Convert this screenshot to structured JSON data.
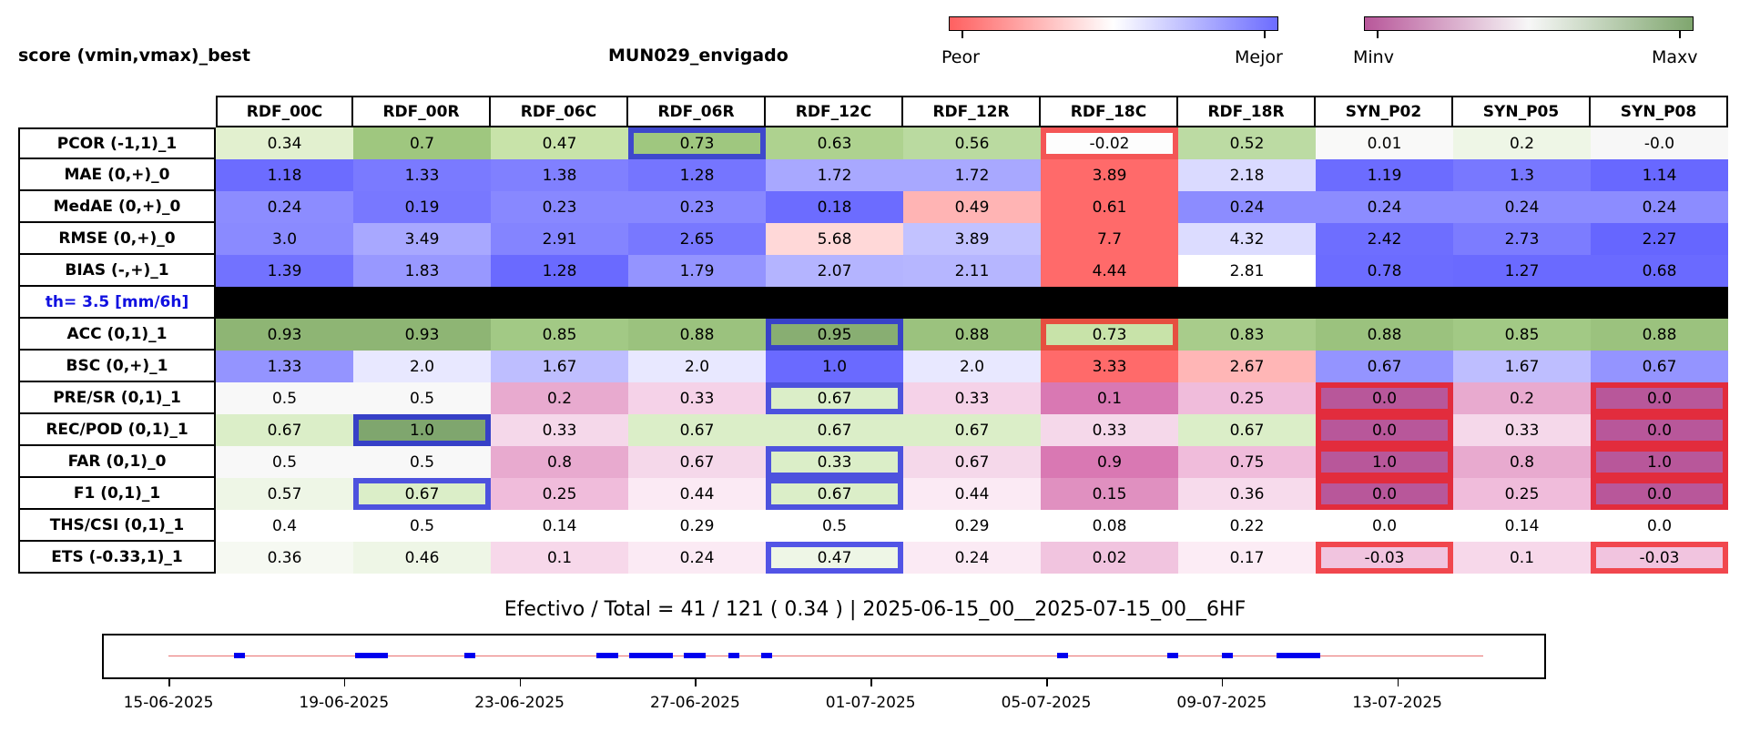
{
  "header": {
    "left_title": "score (vmin,vmax)_best",
    "center_title": "MUN029_envigado"
  },
  "colorbars": {
    "score": {
      "low_label": "Peor",
      "high_label": "Mejor",
      "low_color": "#ff6060",
      "mid_color": "#ffffff",
      "high_color": "#6c6cff"
    },
    "value": {
      "low_label": "Minv",
      "high_label": "Maxv",
      "low_color": "#b8579a",
      "mid_color": "#f7f7f7",
      "high_color": "#7fa66e"
    }
  },
  "chart_data": {
    "type": "table",
    "columns": [
      "RDF_00C",
      "RDF_00R",
      "RDF_06C",
      "RDF_06R",
      "RDF_12C",
      "RDF_12R",
      "RDF_18C",
      "RDF_18R",
      "SYN_P02",
      "SYN_P05",
      "SYN_P08"
    ],
    "rows": [
      {
        "label": "PCOR (-1,1)_1",
        "values": [
          "0.34",
          "0.7",
          "0.47",
          "0.73",
          "0.63",
          "0.56",
          "-0.02",
          "0.52",
          "0.01",
          "0.2",
          "-0.0"
        ],
        "colors": [
          "#e2f0cf",
          "#9fc77f",
          "#c8e3a9",
          "#9fc77f",
          "#aed28f",
          "#badaa0",
          "#fdfdfd",
          "#bcdba3",
          "#f9f9f8",
          "#eef6e6",
          "#f7f7f7"
        ],
        "highlights": {
          "3": "blue",
          "6": "red"
        }
      },
      {
        "label": "MAE (0,+)_0",
        "values": [
          "1.18",
          "1.33",
          "1.38",
          "1.28",
          "1.72",
          "1.72",
          "3.89",
          "2.18",
          "1.19",
          "1.3",
          "1.14"
        ],
        "colors": [
          "#6c6cff",
          "#7a7aff",
          "#8080ff",
          "#7575ff",
          "#a8a8ff",
          "#a8a8ff",
          "#ff6a6a",
          "#dadaff",
          "#6c6cff",
          "#7878ff",
          "#6868ff"
        ],
        "highlights": {}
      },
      {
        "label": "MedAE (0,+)_0",
        "values": [
          "0.24",
          "0.19",
          "0.23",
          "0.23",
          "0.18",
          "0.49",
          "0.61",
          "0.24",
          "0.24",
          "0.24",
          "0.24"
        ],
        "colors": [
          "#8c8cff",
          "#7878ff",
          "#8888ff",
          "#8888ff",
          "#6c6cff",
          "#ffb4b4",
          "#ff6a6a",
          "#8c8cff",
          "#8c8cff",
          "#8c8cff",
          "#8c8cff"
        ],
        "highlights": {}
      },
      {
        "label": "RMSE (0,+)_0",
        "values": [
          "3.0",
          "3.49",
          "2.91",
          "2.65",
          "5.68",
          "3.89",
          "7.7",
          "4.32",
          "2.42",
          "2.73",
          "2.27"
        ],
        "colors": [
          "#8a8aff",
          "#a8a8ff",
          "#8484ff",
          "#7878ff",
          "#ffd8d8",
          "#c2c2ff",
          "#ff6a6a",
          "#dcdcff",
          "#6e6eff",
          "#7c7cff",
          "#6666ff"
        ],
        "highlights": {}
      },
      {
        "label": "BIAS (-,+)_1",
        "values": [
          "1.39",
          "1.83",
          "1.28",
          "1.79",
          "2.07",
          "2.11",
          "4.44",
          "2.81",
          "0.78",
          "1.27",
          "0.68"
        ],
        "colors": [
          "#7272ff",
          "#9898ff",
          "#6a6aff",
          "#9494ff",
          "#b4b4ff",
          "#b6b6ff",
          "#ff6a6a",
          "#ffffff",
          "#6c6cff",
          "#6a6aff",
          "#6a6aff"
        ],
        "highlights": {}
      },
      {
        "label": "th= 3.5 [mm/6h]",
        "threshold": true
      },
      {
        "label": "ACC (0,1)_1",
        "values": [
          "0.93",
          "0.93",
          "0.85",
          "0.88",
          "0.95",
          "0.88",
          "0.73",
          "0.83",
          "0.88",
          "0.85",
          "0.88"
        ],
        "colors": [
          "#8eb574",
          "#8eb574",
          "#a2c985",
          "#9bc27e",
          "#88ae72",
          "#9bc27e",
          "#c8e3a9",
          "#a8cc8b",
          "#9bc27e",
          "#a2c985",
          "#9bc27e"
        ],
        "highlights": {
          "4": "blue",
          "6": "red"
        }
      },
      {
        "label": "BSC (0,+)_1",
        "values": [
          "1.33",
          "2.0",
          "1.67",
          "2.0",
          "1.0",
          "2.0",
          "3.33",
          "2.67",
          "0.67",
          "1.67",
          "0.67"
        ],
        "colors": [
          "#9494ff",
          "#e8e8ff",
          "#bebeff",
          "#e8e8ff",
          "#6a6aff",
          "#e8e8ff",
          "#ff6a6a",
          "#ffb6b6",
          "#9494ff",
          "#bebeff",
          "#9494ff"
        ],
        "highlights": {}
      },
      {
        "label": "PRE/SR (0,1)_1",
        "values": [
          "0.5",
          "0.5",
          "0.2",
          "0.33",
          "0.67",
          "0.33",
          "0.1",
          "0.25",
          "0.0",
          "0.2",
          "0.0"
        ],
        "colors": [
          "#f8f8f8",
          "#f8f8f8",
          "#e8aacf",
          "#f5d2e8",
          "#dbeec8",
          "#f5d2e8",
          "#d978b3",
          "#f0bcdb",
          "#b8579a",
          "#e8aacf",
          "#b8579a"
        ],
        "highlights": {
          "4": "blue",
          "8": "red",
          "10": "red"
        }
      },
      {
        "label": "REC/POD (0,1)_1",
        "values": [
          "0.67",
          "1.0",
          "0.33",
          "0.67",
          "0.67",
          "0.67",
          "0.33",
          "0.67",
          "0.0",
          "0.33",
          "0.0"
        ],
        "colors": [
          "#dbeec8",
          "#7fa66e",
          "#f5d8ea",
          "#dbeec8",
          "#dbeec8",
          "#dbeec8",
          "#f5d8ea",
          "#dbeec8",
          "#b8579a",
          "#f5d8ea",
          "#b8579a"
        ],
        "highlights": {
          "1": "blue",
          "8": "red",
          "10": "red"
        }
      },
      {
        "label": "FAR (0,1)_0",
        "values": [
          "0.5",
          "0.5",
          "0.8",
          "0.67",
          "0.33",
          "0.67",
          "0.9",
          "0.75",
          "1.0",
          "0.8",
          "1.0"
        ],
        "colors": [
          "#f8f8f8",
          "#f8f8f8",
          "#e8aacf",
          "#f5d8ea",
          "#dbeec8",
          "#f5d8ea",
          "#d978b3",
          "#f0bcdb",
          "#b8579a",
          "#e8aacf",
          "#b8579a"
        ],
        "highlights": {
          "4": "blue",
          "8": "red",
          "10": "red"
        }
      },
      {
        "label": "F1 (0,1)_1",
        "values": [
          "0.57",
          "0.67",
          "0.25",
          "0.44",
          "0.67",
          "0.44",
          "0.15",
          "0.36",
          "0.0",
          "0.25",
          "0.0"
        ],
        "colors": [
          "#eef6e6",
          "#dbeec8",
          "#f0bcdb",
          "#fbeaf4",
          "#dbeec8",
          "#fbeaf4",
          "#e090c0",
          "#f7dbec",
          "#b8579a",
          "#f0bcdb",
          "#b8579a"
        ],
        "highlights": {
          "1": "blue",
          "4": "blue",
          "8": "red",
          "10": "red"
        }
      },
      {
        "label": "THS/CSI (0,1)_1",
        "values": [
          "0.4",
          "0.5",
          "0.14",
          "0.29",
          "0.5",
          "0.29",
          "0.08",
          "0.22",
          "0.0",
          "0.14",
          "0.0"
        ],
        "colors": [
          "#ffffff",
          "#ffffff",
          "#ffffff",
          "#ffffff",
          "#ffffff",
          "#ffffff",
          "#ffffff",
          "#ffffff",
          "#ffffff",
          "#ffffff",
          "#ffffff"
        ],
        "highlights": {}
      },
      {
        "label": "ETS (-0.33,1)_1",
        "values": [
          "0.36",
          "0.46",
          "0.1",
          "0.24",
          "0.47",
          "0.24",
          "0.02",
          "0.17",
          "-0.03",
          "0.1",
          "-0.03"
        ],
        "colors": [
          "#f6f9f2",
          "#eef6e6",
          "#f7d8ea",
          "#fbeaf4",
          "#eef6e6",
          "#fbeaf4",
          "#f1c4df",
          "#fcecf5",
          "#f1c4df",
          "#f7d8ea",
          "#f1c4df"
        ],
        "highlights": {
          "4": "blue",
          "8": "red",
          "10": "red"
        }
      }
    ],
    "timeline": {
      "xlabels": [
        "15-06-2025",
        "19-06-2025",
        "23-06-2025",
        "27-06-2025",
        "01-07-2025",
        "05-07-2025",
        "09-07-2025",
        "13-07-2025"
      ],
      "x_range": [
        "2025-06-15",
        "2025-07-15"
      ],
      "line_color": "#e87070",
      "segment_color": "#0000ee",
      "active_segments": [
        [
          "2025-06-16T12",
          "2025-06-16T18"
        ],
        [
          "2025-06-19T06",
          "2025-06-20T00"
        ],
        [
          "2025-06-21T18",
          "2025-06-22T00"
        ],
        [
          "2025-06-24T18",
          "2025-06-25T06"
        ],
        [
          "2025-06-25T12",
          "2025-06-26T12"
        ],
        [
          "2025-06-26T18",
          "2025-06-27T06"
        ],
        [
          "2025-06-27T18",
          "2025-06-28T00"
        ],
        [
          "2025-06-28T12",
          "2025-06-28T18"
        ],
        [
          "2025-07-05T06",
          "2025-07-05T12"
        ],
        [
          "2025-07-07T18",
          "2025-07-08T00"
        ],
        [
          "2025-07-09T00",
          "2025-07-09T06"
        ],
        [
          "2025-07-10T06",
          "2025-07-11T06"
        ]
      ]
    }
  },
  "footer": {
    "summary": "Efectivo / Total  =  41 / 121 ( 0.34 ) | 2025-06-15_00__2025-07-15_00__6HF"
  }
}
